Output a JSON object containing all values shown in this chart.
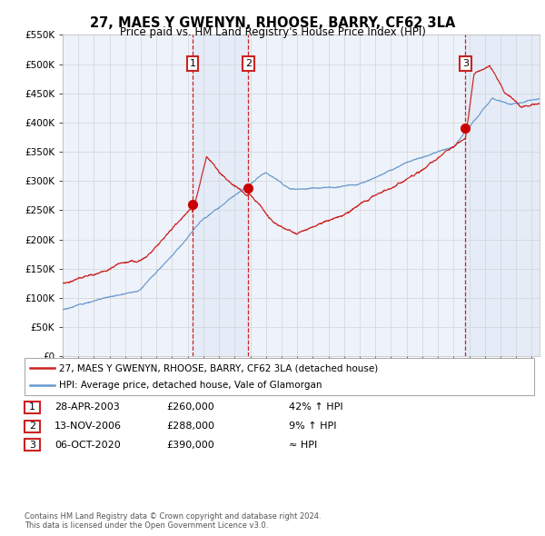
{
  "title": "27, MAES Y GWENYN, RHOOSE, BARRY, CF62 3LA",
  "subtitle": "Price paid vs. HM Land Registry's House Price Index (HPI)",
  "legend_line1": "27, MAES Y GWENYN, RHOOSE, BARRY, CF62 3LA (detached house)",
  "legend_line2": "HPI: Average price, detached house, Vale of Glamorgan",
  "footer1": "Contains HM Land Registry data © Crown copyright and database right 2024.",
  "footer2": "This data is licensed under the Open Government Licence v3.0.",
  "hpi_color": "#6699cc",
  "price_color": "#cc2222",
  "sale_marker_color": "#cc0000",
  "background_color": "#ffffff",
  "plot_bg_color": "#eef2fa",
  "grid_color": "#d8d8d8",
  "ylim": [
    0,
    550000
  ],
  "yticks": [
    0,
    50000,
    100000,
    150000,
    200000,
    250000,
    300000,
    350000,
    400000,
    450000,
    500000,
    550000
  ],
  "ytick_labels": [
    "£0",
    "£50K",
    "£100K",
    "£150K",
    "£200K",
    "£250K",
    "£300K",
    "£350K",
    "£400K",
    "£450K",
    "£500K",
    "£550K"
  ],
  "xmin": 1995,
  "xmax": 2025.5,
  "sale_dates": [
    2003.32,
    2006.87,
    2020.76
  ],
  "sale_prices": [
    260000,
    288000,
    390000
  ],
  "sale_labels": [
    "1",
    "2",
    "3"
  ],
  "table_rows": [
    [
      "1",
      "28-APR-2003",
      "£260,000",
      "42% ↑ HPI"
    ],
    [
      "2",
      "13-NOV-2006",
      "£288,000",
      "9% ↑ HPI"
    ],
    [
      "3",
      "06-OCT-2020",
      "£390,000",
      "≈ HPI"
    ]
  ]
}
